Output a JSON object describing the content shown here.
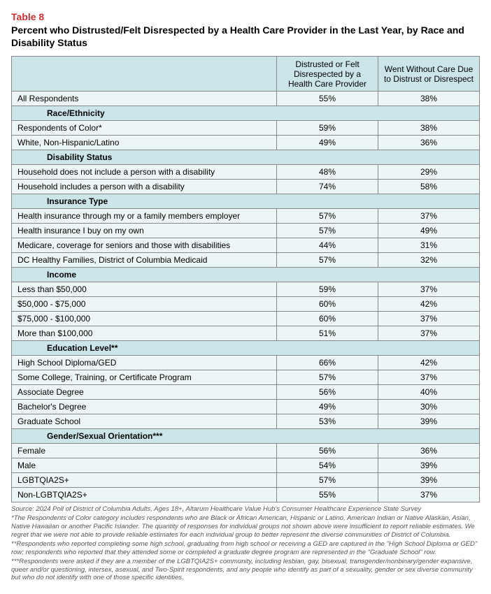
{
  "header": {
    "table_number": "Table 8",
    "title": "Percent who Distrusted/Felt Disrespected by a Health Care Provider in the Last Year, by Race and Disability Status"
  },
  "columns": {
    "col1": "",
    "col2": "Distrusted or Felt Disrespected by a Health Care Provider",
    "col3": "Went Without Care Due to Distrust or Disrespect"
  },
  "rows": [
    {
      "type": "data",
      "label": "All Respondents",
      "v1": "55%",
      "v2": "38%"
    },
    {
      "type": "section",
      "label": "Race/Ethnicity"
    },
    {
      "type": "data",
      "label": "Respondents of Color*",
      "v1": "59%",
      "v2": "38%"
    },
    {
      "type": "data",
      "label": "White, Non-Hispanic/Latino",
      "v1": "49%",
      "v2": "36%"
    },
    {
      "type": "section",
      "label": "Disability Status"
    },
    {
      "type": "data",
      "label": "Household does not include a person with a disability",
      "v1": "48%",
      "v2": "29%"
    },
    {
      "type": "data",
      "label": "Household includes a person with a disability",
      "v1": "74%",
      "v2": "58%"
    },
    {
      "type": "section",
      "label": "Insurance Type"
    },
    {
      "type": "data",
      "label": "Health insurance through my or a family members employer",
      "v1": "57%",
      "v2": "37%"
    },
    {
      "type": "data",
      "label": "Health insurance I buy on my own",
      "v1": "57%",
      "v2": "49%"
    },
    {
      "type": "data",
      "label": "Medicare, coverage for seniors and those with disabilities",
      "v1": "44%",
      "v2": "31%"
    },
    {
      "type": "data",
      "label": "DC Healthy Families, District of Columbia Medicaid",
      "v1": "57%",
      "v2": "32%"
    },
    {
      "type": "section",
      "label": "Income"
    },
    {
      "type": "data",
      "label": "Less than $50,000",
      "v1": "59%",
      "v2": "37%"
    },
    {
      "type": "data",
      "label": "$50,000 - $75,000",
      "v1": "60%",
      "v2": "42%"
    },
    {
      "type": "data",
      "label": "$75,000 - $100,000",
      "v1": "60%",
      "v2": "37%"
    },
    {
      "type": "data",
      "label": "More than $100,000",
      "v1": "51%",
      "v2": "37%"
    },
    {
      "type": "section",
      "label": "Education Level**"
    },
    {
      "type": "data",
      "label": "High School Diploma/GED",
      "v1": "66%",
      "v2": "42%"
    },
    {
      "type": "data",
      "label": "Some College, Training, or Certificate Program",
      "v1": "57%",
      "v2": "37%"
    },
    {
      "type": "data",
      "label": "Associate Degree",
      "v1": "56%",
      "v2": "40%"
    },
    {
      "type": "data",
      "label": "Bachelor's Degree",
      "v1": "49%",
      "v2": "30%"
    },
    {
      "type": "data",
      "label": "Graduate School",
      "v1": "53%",
      "v2": "39%"
    },
    {
      "type": "section",
      "label": "Gender/Sexual Orientation***"
    },
    {
      "type": "data",
      "label": "Female",
      "v1": "56%",
      "v2": "36%"
    },
    {
      "type": "data",
      "label": "Male",
      "v1": "54%",
      "v2": "39%"
    },
    {
      "type": "data",
      "label": "LGBTQIA2S+",
      "v1": "57%",
      "v2": "39%"
    },
    {
      "type": "data",
      "label": "Non-LGBTQIA2S+",
      "v1": "55%",
      "v2": "37%"
    }
  ],
  "footnotes": [
    "Source: 2024 Poll of District of Columbia Adults, Ages 18+, Altarum Healthcare Value Hub's Consumer Healthcare Experience State Survey",
    "*The Respondents of Color category includes respondents who are Black or African American, Hispanic or Latino, American Indian or Native Alaskan, Asian, Native Hawaiian or another Pacific Islander. The quantity of responses for individual groups not shown above were insufficient to report reliable estimates. We regret that we were not able to provide reliable estimates for each individual group to better represent the diverse communities of District of Columbia.",
    "**Respondents who reported completing some high school, graduating from high school or receiving a GED are captured in the \"High School Diploma or GED\" row; respondents who reported that they attended some or completed a graduate degree program are represented in the \"Graduate School\" row.",
    "***Respondents were asked if they are a member of the LGBTQIA2S+ community, including lesbian, gay, bisexual, transgender/nonbinary/gender expansive, queer and/or questioning, intersex, asexual, and Two-Spirit respondents, and any people who identify as part of a sexuality, gender or sex diverse community but who do not identify with one of those specific identities."
  ],
  "colors": {
    "accent_red": "#d32f2f",
    "header_bg": "#cce5e8",
    "row_bg": "#edf6f7",
    "border": "#888888"
  }
}
